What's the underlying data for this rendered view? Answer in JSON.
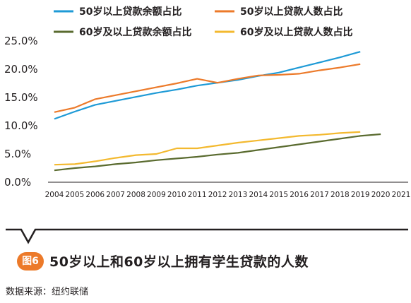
{
  "figure": {
    "badge": "图6",
    "title": "50岁以上和60岁以上拥有学生贷款的人数",
    "source": "数据来源：纽约联储"
  },
  "chart_data": {
    "type": "line",
    "title": "",
    "xlabel": "",
    "ylabel": "",
    "x": [
      "2004",
      "2005",
      "2006",
      "2007",
      "2008",
      "2009",
      "2010",
      "2011",
      "2012",
      "2013",
      "2014",
      "2015",
      "2016",
      "2017",
      "2018",
      "2019",
      "2020",
      "2021"
    ],
    "yticks": [
      "0.0%",
      "5.0%",
      "10.0%",
      "15.0%",
      "20.0%",
      "25.0%"
    ],
    "ylim": [
      0,
      25
    ],
    "grid": false,
    "legend": "top",
    "series": [
      {
        "name": "50岁以上贷款余额占比",
        "color": "#1e9ad6",
        "values": [
          11.2,
          12.5,
          13.7,
          14.4,
          15.1,
          15.8,
          16.4,
          17.1,
          17.6,
          18.1,
          18.8,
          19.4,
          20.3,
          21.2,
          22.1,
          23.1,
          0,
          0
        ]
      },
      {
        "name": "50岁以上贷款人数占比",
        "color": "#ec7a2a",
        "values": [
          12.4,
          13.2,
          14.7,
          15.4,
          16.1,
          16.8,
          17.5,
          18.3,
          17.6,
          18.3,
          18.9,
          19.0,
          19.2,
          19.8,
          20.3,
          20.9,
          0,
          0
        ]
      },
      {
        "name": "60岁及以上贷款余额占比",
        "color": "#5a6b2f",
        "values": [
          2.1,
          2.5,
          2.8,
          3.2,
          3.5,
          3.9,
          4.2,
          4.5,
          4.9,
          5.2,
          5.7,
          6.2,
          6.7,
          7.2,
          7.7,
          8.2,
          8.5,
          0
        ]
      },
      {
        "name": "60岁及以上贷款人数占比",
        "color": "#f3b92f",
        "values": [
          3.1,
          3.2,
          3.7,
          4.3,
          4.8,
          5.0,
          6.0,
          6.0,
          6.5,
          7.0,
          7.4,
          7.8,
          8.2,
          8.4,
          8.7,
          8.9,
          0,
          0
        ]
      }
    ]
  }
}
